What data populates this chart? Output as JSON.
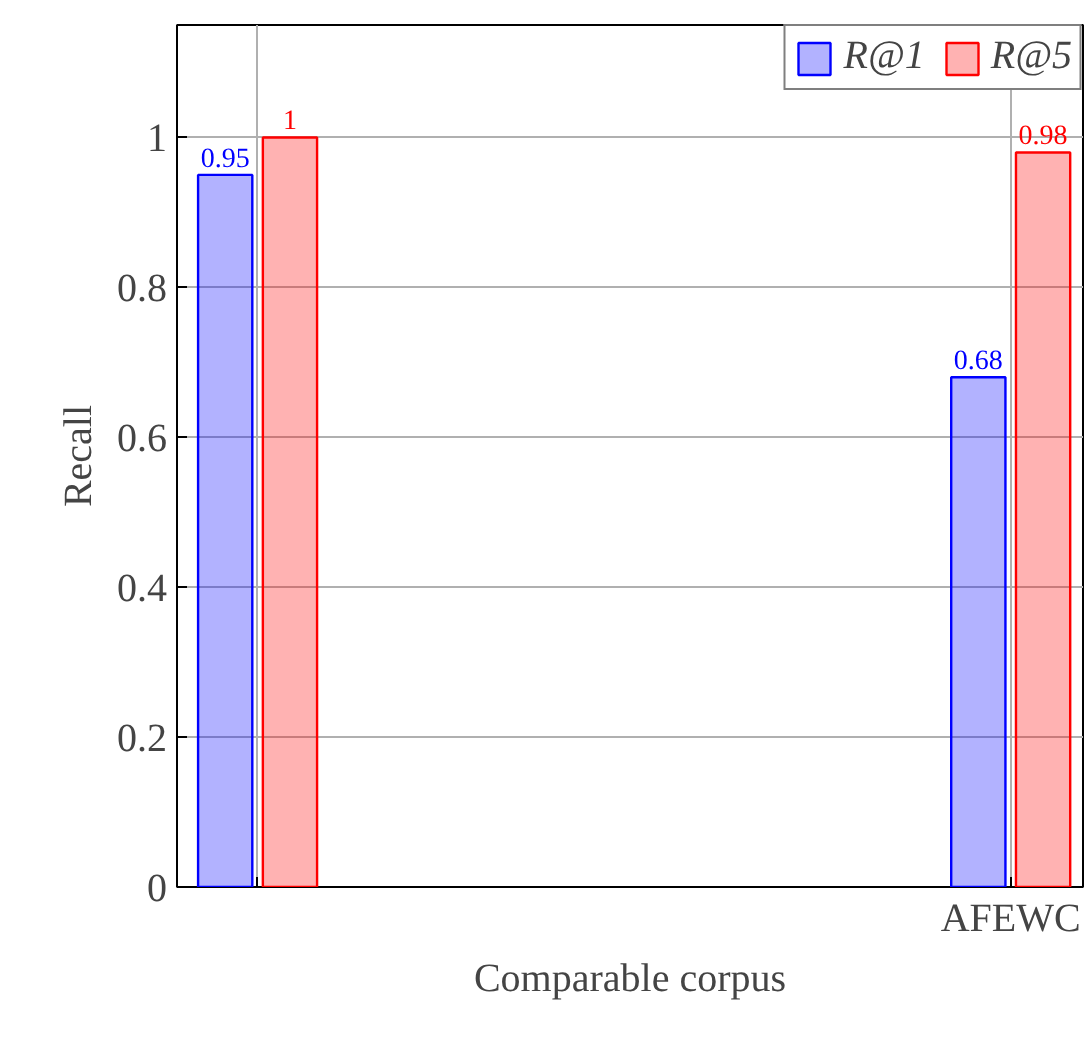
{
  "chart_data": {
    "type": "bar",
    "xlabel": "Comparable corpus",
    "ylabel": "Recall",
    "categories": [
      null,
      "AFEWC"
    ],
    "series": [
      {
        "name": "R@1",
        "color": "#0000ff",
        "values": [
          0.95,
          0.68
        ]
      },
      {
        "name": "R@5",
        "color": "#ff0000",
        "values": [
          1,
          0.98
        ]
      }
    ],
    "ylim": [
      0,
      1.15
    ],
    "yticks": [
      0,
      0.2,
      0.4,
      0.6,
      0.8,
      1
    ],
    "grid": true,
    "legend": "top right",
    "data_labels": true
  }
}
